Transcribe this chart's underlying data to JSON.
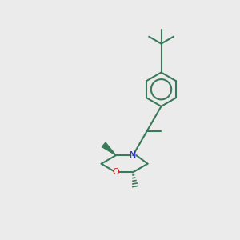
{
  "bg_color": "#ebebeb",
  "bond_color": "#3a7a5a",
  "N_color": "#2222cc",
  "O_color": "#cc2222",
  "line_width": 1.5,
  "figsize": [
    3.0,
    3.0
  ],
  "dpi": 100
}
